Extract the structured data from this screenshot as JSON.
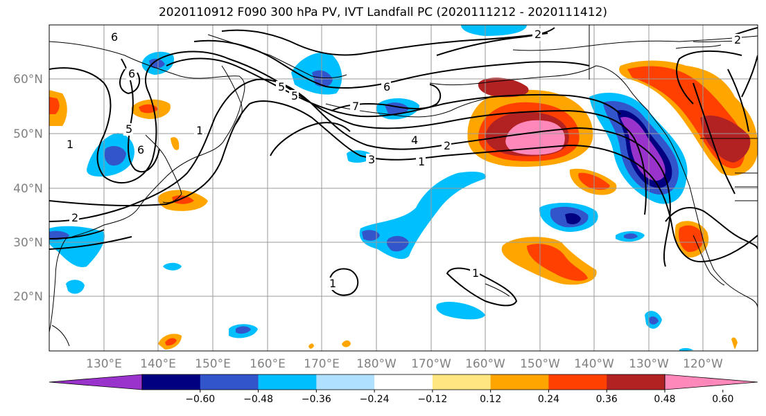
{
  "title": "2020110912 F090 300 hPa PV, IVT Landfall PC (2020111212 - 2020111412)",
  "lat_labels": [
    "60°N",
    "50°N",
    "40°N",
    "30°N",
    "20°N"
  ],
  "lon_labels": [
    "130°E",
    "140°E",
    "150°E",
    "160°E",
    "170°E",
    "180°W",
    "170°W",
    "160°W",
    "150°W",
    "140°W",
    "130°W",
    "120°W"
  ],
  "colorbar": {
    "colors": [
      "#9933cc",
      "#000080",
      "#3355cc",
      "#00bfff",
      "#b0e0ff",
      "#ffffff",
      "#ffe680",
      "#ffa500",
      "#ff4000",
      "#b22222",
      "#ff88bb"
    ],
    "tick_labels": [
      "-0.60",
      "-0.48",
      "-0.36",
      "-0.24",
      "-0.12",
      "0.12",
      "0.24",
      "0.36",
      "0.48",
      "0.60"
    ]
  },
  "contour_labels": [
    "6",
    "6",
    "5",
    "6",
    "1",
    "1",
    "2",
    "5",
    "5",
    "6",
    "7",
    "4",
    "2",
    "1",
    "3",
    "2",
    "2",
    "1",
    "1"
  ]
}
